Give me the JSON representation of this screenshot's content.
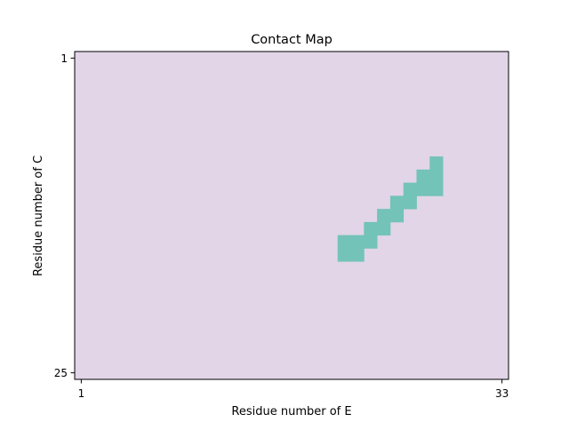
{
  "chart_data": {
    "type": "heatmap",
    "title": "Contact Map",
    "xlabel": "Residue number of E",
    "ylabel": "Residue number of C",
    "x_range": [
      1,
      33
    ],
    "y_range": [
      1,
      25
    ],
    "x_ticks": [
      "1",
      "33"
    ],
    "y_ticks": [
      "1",
      "25"
    ],
    "y_axis_inverted": true,
    "grid": false,
    "legend": "none",
    "colors": {
      "no_contact": "#e1d5e7",
      "contact": "#73c3b9"
    },
    "contact_cells": [
      [
        28,
        9
      ],
      [
        27,
        10
      ],
      [
        28,
        10
      ],
      [
        26,
        11
      ],
      [
        27,
        11
      ],
      [
        28,
        11
      ],
      [
        25,
        12
      ],
      [
        26,
        12
      ],
      [
        24,
        13
      ],
      [
        25,
        13
      ],
      [
        23,
        14
      ],
      [
        24,
        14
      ],
      [
        21,
        15
      ],
      [
        22,
        15
      ],
      [
        23,
        15
      ],
      [
        21,
        16
      ],
      [
        22,
        16
      ]
    ]
  }
}
